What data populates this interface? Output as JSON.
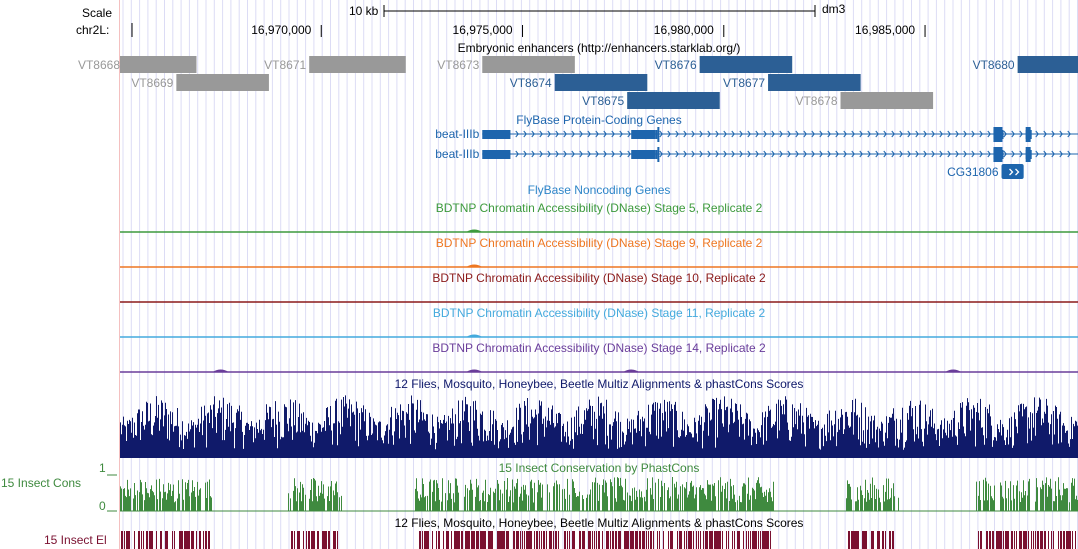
{
  "ruler": {
    "scale_label": "Scale",
    "scale_bar_text": "10 kb",
    "assembly": "dm3",
    "chrom_label": "chr2L:",
    "ticks": [
      {
        "pos": 16970000,
        "label": "16,970,000"
      },
      {
        "pos": 16975000,
        "label": "16,975,000"
      },
      {
        "pos": 16980000,
        "label": "16,980,000"
      },
      {
        "pos": 16985000,
        "label": "16,985,000"
      }
    ]
  },
  "view": {
    "start": 16965000,
    "end": 16988800
  },
  "tracks": {
    "enhancers": {
      "title": "Embryonic enhancers (http://enhancers.starklab.org/)",
      "active_color": "#2c5f95",
      "inactive_color": "#999999",
      "items": [
        {
          "name": "VT8668",
          "start": 16965000,
          "end": 16966900,
          "row": 0,
          "active": false
        },
        {
          "name": "VT8669",
          "start": 16966400,
          "end": 16968700,
          "row": 1,
          "active": false
        },
        {
          "name": "VT8671",
          "start": 16969700,
          "end": 16972100,
          "row": 0,
          "active": false
        },
        {
          "name": "VT8673",
          "start": 16974000,
          "end": 16976300,
          "row": 0,
          "active": false
        },
        {
          "name": "VT8674",
          "start": 16975800,
          "end": 16978100,
          "row": 1,
          "active": true
        },
        {
          "name": "VT8675",
          "start": 16977600,
          "end": 16979900,
          "row": 2,
          "active": true
        },
        {
          "name": "VT8676",
          "start": 16979400,
          "end": 16981700,
          "row": 0,
          "active": true
        },
        {
          "name": "VT8677",
          "start": 16981100,
          "end": 16983400,
          "row": 1,
          "active": true
        },
        {
          "name": "VT8678",
          "start": 16982900,
          "end": 16985200,
          "row": 2,
          "active": false
        },
        {
          "name": "VT8680",
          "start": 16987300,
          "end": 16988800,
          "row": 0,
          "active": true
        }
      ]
    },
    "coding_genes": {
      "title": "FlyBase Protein-Coding Genes",
      "color": "#1d65ad",
      "transcripts": [
        {
          "name": "beat-IIIb",
          "start": 16974000,
          "end": 16988800,
          "exons": [
            [
              16974000,
              16974700
            ],
            [
              16977700,
              16978300
            ],
            [
              16978300,
              16978350
            ],
            [
              16986700,
              16986950
            ],
            [
              16987500,
              16987650
            ]
          ]
        },
        {
          "name": "beat-IIIb",
          "start": 16974000,
          "end": 16988800,
          "exons": [
            [
              16974000,
              16974700
            ],
            [
              16977700,
              16978300
            ],
            [
              16978300,
              16978350
            ],
            [
              16986700,
              16986950
            ],
            [
              16987500,
              16987650
            ]
          ]
        },
        {
          "name": "CG31806",
          "start": 16986900,
          "end": 16987450,
          "exons": [
            [
              16986900,
              16987450
            ]
          ]
        }
      ]
    },
    "noncoding_genes": {
      "title": "FlyBase Noncoding Genes",
      "color": "#2e86c8"
    },
    "dnase": [
      {
        "title": "BDTNP Chromatin Accessibility (DNase) Stage 5, Replicate 2",
        "color": "#3d9a3d",
        "peaks": [
          16973800
        ]
      },
      {
        "title": "BDTNP Chromatin Accessibility (DNase) Stage 9, Replicate 2",
        "color": "#ee7722",
        "peaks": [
          16973800
        ]
      },
      {
        "title": "BDTNP Chromatin Accessibility (DNase) Stage 10, Replicate 2",
        "color": "#8b1a1a",
        "peaks": []
      },
      {
        "title": "BDTNP Chromatin Accessibility (DNase) Stage 11, Replicate 2",
        "color": "#44aadd",
        "peaks": [
          16973800
        ]
      },
      {
        "title": "BDTNP Chromatin Accessibility (DNase) Stage 14, Replicate 2",
        "color": "#6a3d9a",
        "peaks": [
          16967500,
          16973800,
          16977700,
          16985700
        ]
      }
    ],
    "multiz": {
      "title": "12 Flies, Mosquito, Honeybee, Beetle Multiz Alignments & phastCons Scores",
      "color": "#101a6a"
    },
    "phastcons": {
      "title": "15 Insect Conservation by PhastCons",
      "side_label": "15 Insect Cons",
      "axis_max": "1",
      "axis_min": "0",
      "color": "#3f8a3f"
    },
    "elements": {
      "title": "12 Flies, Mosquito, Honeybee, Beetle Multiz Alignments & phastCons Scores",
      "side_label": "15 Insect El",
      "color": "#7a1030"
    }
  }
}
